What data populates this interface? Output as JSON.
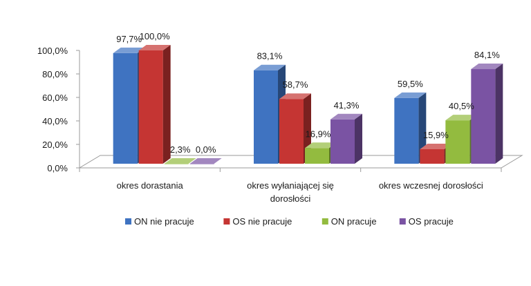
{
  "chart_data": {
    "type": "bar",
    "style": "3d-clustered",
    "title": "",
    "xlabel": "",
    "ylabel": "",
    "ylim": [
      0,
      100
    ],
    "y_ticks": [
      "0,0%",
      "20,0%",
      "40,0%",
      "60,0%",
      "80,0%",
      "100,0%"
    ],
    "categories": [
      [
        "okres dorastania"
      ],
      [
        "okres wyłaniającej się",
        "dorosłości"
      ],
      [
        "okres wczesnej dorosłości"
      ]
    ],
    "series": [
      {
        "name": "ON nie pracuje",
        "color": "#3f73c1",
        "values": [
          97.7,
          83.1,
          59.5
        ],
        "labels": [
          "97,7%",
          "83,1%",
          "59,5%"
        ]
      },
      {
        "name": "OS nie pracuje",
        "color": "#c53533",
        "values": [
          100.0,
          58.7,
          15.9
        ],
        "labels": [
          "100,0%",
          "58,7%",
          "15,9%"
        ]
      },
      {
        "name": "ON pracuje",
        "color": "#93bb3f",
        "values": [
          2.3,
          16.9,
          40.5
        ],
        "labels": [
          "2,3%",
          "16,9%",
          "40,5%"
        ]
      },
      {
        "name": "OS pracuje",
        "color": "#7a53a3",
        "values": [
          0.0,
          41.3,
          84.1
        ],
        "labels": [
          "0,0%",
          "41,3%",
          "84,1%"
        ]
      }
    ],
    "legend_position": "bottom"
  }
}
